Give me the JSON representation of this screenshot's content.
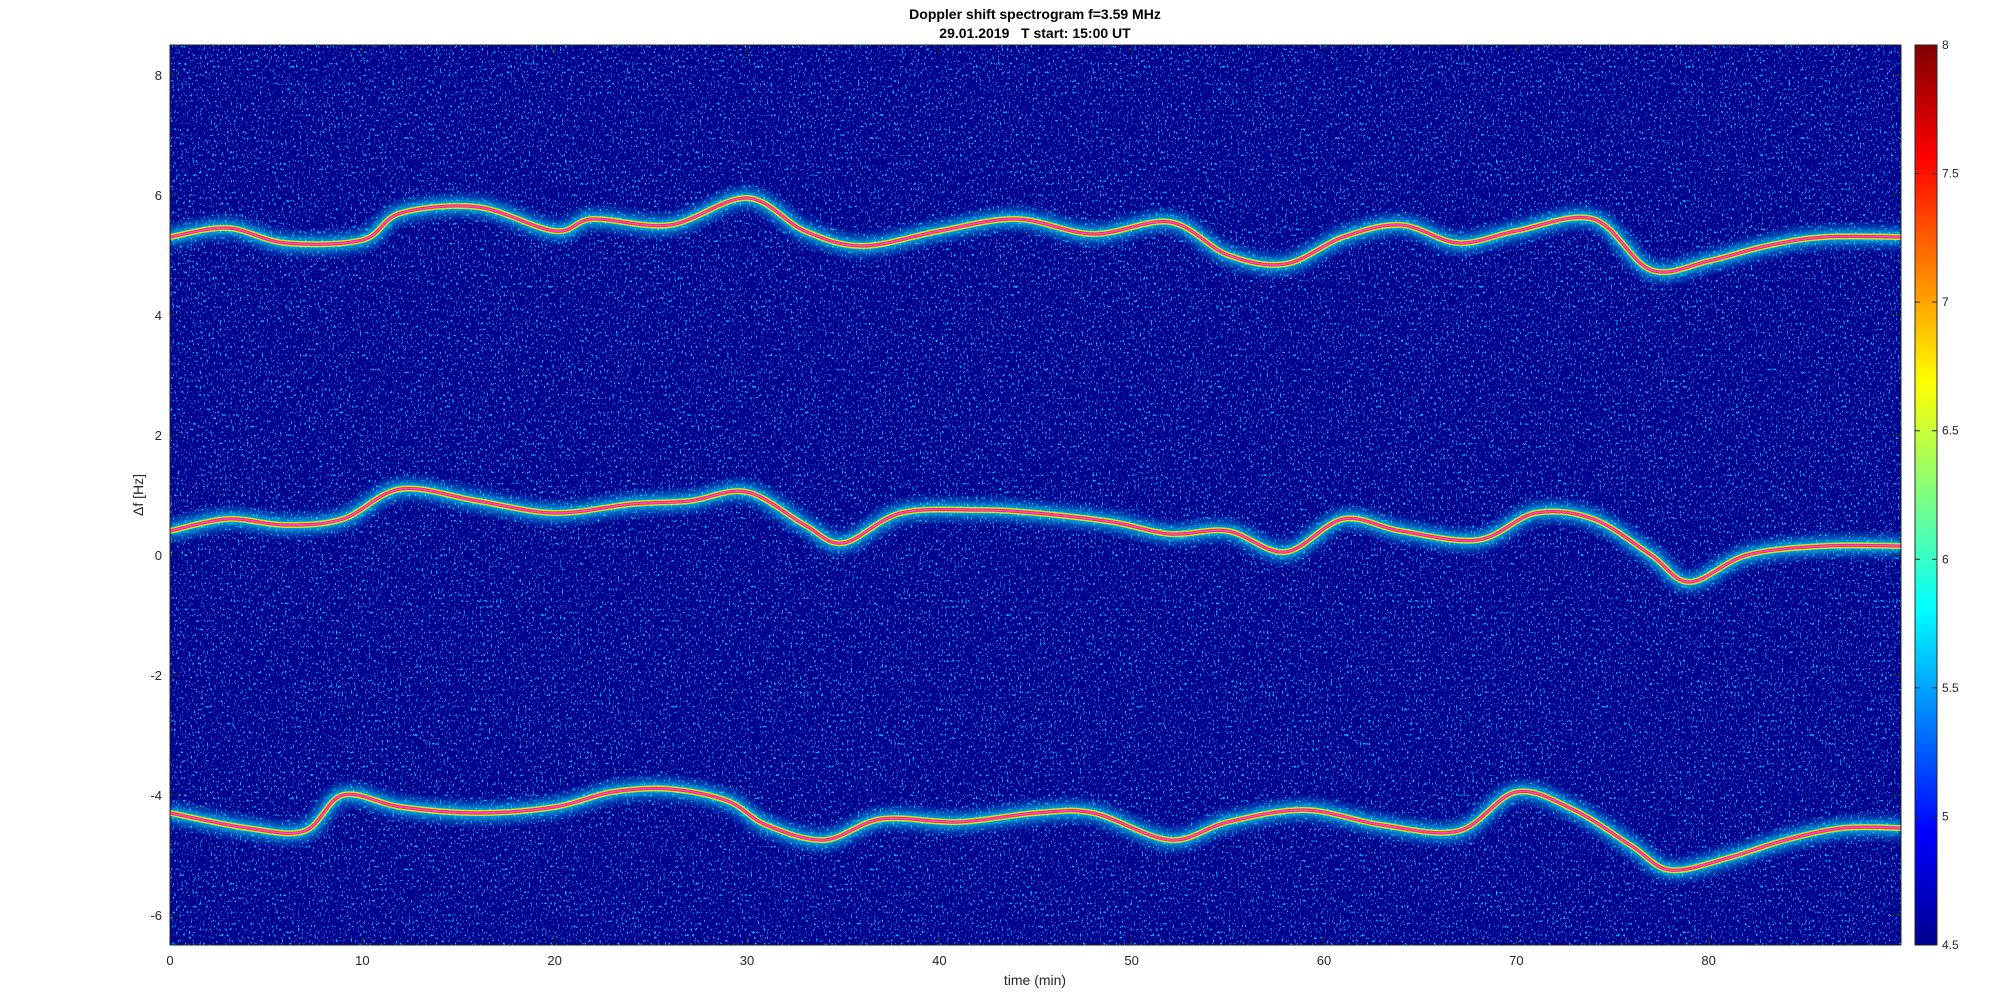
{
  "chart_data": {
    "type": "heatmap",
    "title": "Doppler shift spectrogram f=3.59 MHz",
    "subtitle": "29.01.2019   T start: 15:00 UT",
    "xlabel": "time (min)",
    "ylabel": "Δf [Hz]",
    "xlim": [
      0,
      90
    ],
    "ylim": [
      -6.5,
      8.5
    ],
    "x_ticks": [
      0,
      10,
      20,
      30,
      40,
      50,
      60,
      70,
      80
    ],
    "x_tick_labels": [
      "0",
      "10",
      "20",
      "30",
      "40",
      "50",
      "60",
      "70",
      "80"
    ],
    "y_ticks": [
      -6,
      -4,
      -2,
      0,
      2,
      4,
      6,
      8
    ],
    "y_tick_labels": [
      "-6",
      "-4",
      "-2",
      "0",
      "2",
      "4",
      "6",
      "8"
    ],
    "grid": false,
    "colormap": "jet",
    "colorbar": {
      "position": "right",
      "clim": [
        4.5,
        8
      ],
      "ticks": [
        4.5,
        5,
        5.5,
        6,
        6.5,
        7,
        7.5,
        8
      ],
      "tick_labels": [
        "4.5",
        "5",
        "5.5",
        "6",
        "6.5",
        "7",
        "7.5",
        "8"
      ]
    },
    "traces": [
      {
        "color": "#ff40ff",
        "x": [
          0,
          3,
          6,
          10,
          12,
          16,
          20,
          22,
          26,
          30,
          33,
          36,
          40,
          44,
          48,
          52,
          55,
          58,
          61,
          64,
          67,
          70,
          74,
          77,
          80,
          83,
          86,
          90
        ],
        "y": [
          5.3,
          5.45,
          5.2,
          5.25,
          5.7,
          5.8,
          5.4,
          5.6,
          5.5,
          5.95,
          5.4,
          5.15,
          5.4,
          5.6,
          5.35,
          5.55,
          5.0,
          4.85,
          5.3,
          5.5,
          5.2,
          5.4,
          5.6,
          4.75,
          4.9,
          5.15,
          5.3,
          5.3
        ]
      },
      {
        "color": "#ff40ff",
        "x": [
          0,
          3,
          6,
          9,
          12,
          16,
          20,
          24,
          27,
          30,
          33,
          35,
          38,
          42,
          45,
          49,
          52,
          55,
          58,
          61,
          64,
          68,
          71,
          74,
          77,
          79,
          82,
          86,
          90
        ],
        "y": [
          0.4,
          0.6,
          0.5,
          0.6,
          1.1,
          0.9,
          0.7,
          0.85,
          0.9,
          1.05,
          0.5,
          0.2,
          0.7,
          0.75,
          0.7,
          0.55,
          0.35,
          0.4,
          0.05,
          0.6,
          0.4,
          0.25,
          0.7,
          0.6,
          0.0,
          -0.45,
          0.0,
          0.15,
          0.15
        ]
      },
      {
        "color": "#ff40ff",
        "x": [
          0,
          4,
          7,
          9,
          12,
          16,
          20,
          23,
          26,
          29,
          31,
          34,
          37,
          41,
          45,
          48,
          52,
          55,
          59,
          63,
          67,
          70,
          73,
          76,
          78,
          81,
          84,
          87,
          90
        ],
        "y": [
          -4.3,
          -4.55,
          -4.6,
          -4.0,
          -4.2,
          -4.3,
          -4.2,
          -3.95,
          -3.9,
          -4.1,
          -4.5,
          -4.75,
          -4.4,
          -4.45,
          -4.3,
          -4.3,
          -4.75,
          -4.45,
          -4.25,
          -4.5,
          -4.6,
          -3.95,
          -4.25,
          -4.85,
          -5.25,
          -5.05,
          -4.75,
          -4.55,
          -4.55
        ]
      }
    ]
  }
}
